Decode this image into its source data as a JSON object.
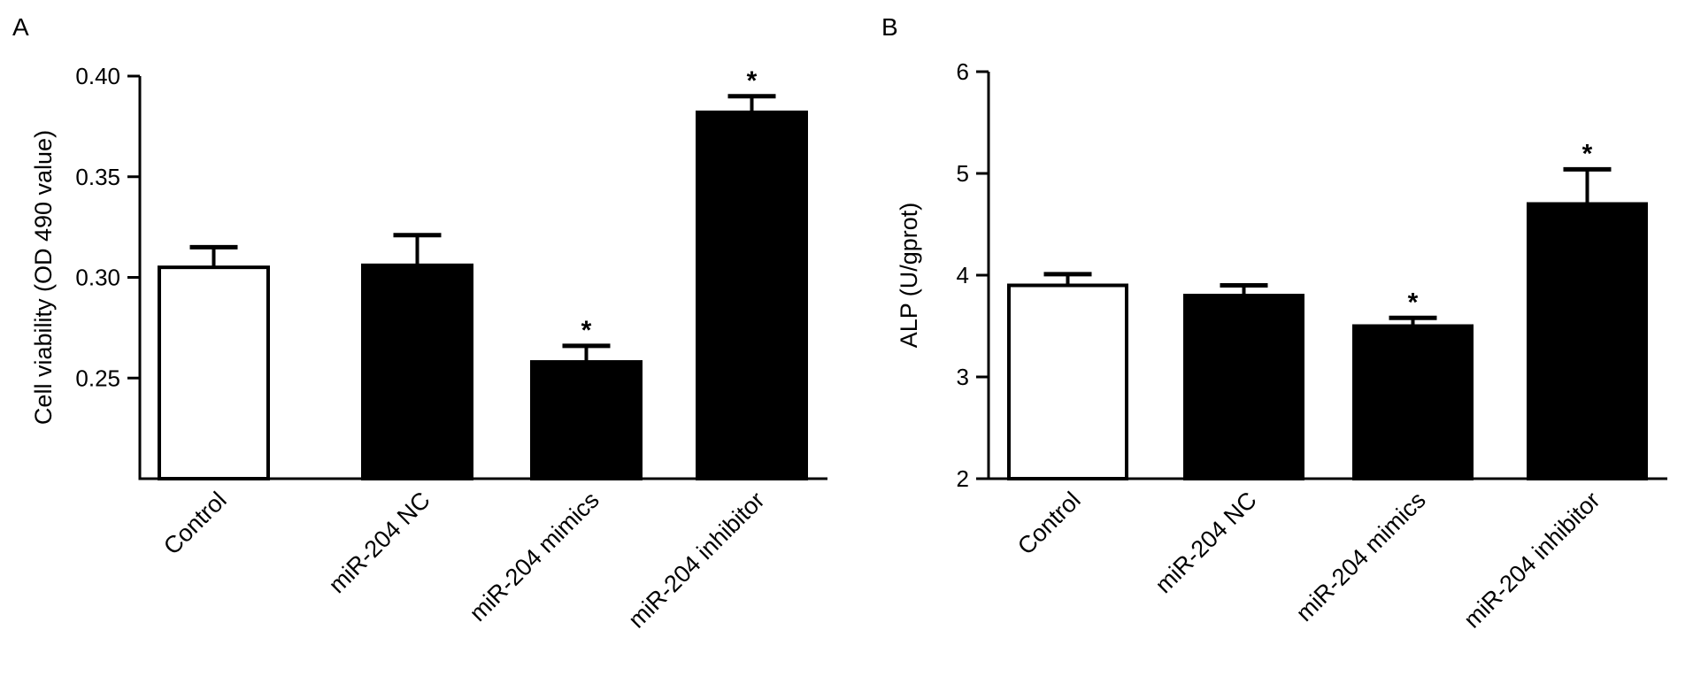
{
  "chart_data": [
    {
      "panel": "A",
      "type": "bar",
      "categories": [
        "Control",
        "miR-204 NC",
        "miR-204 mimics",
        "miR-204 inhibitor"
      ],
      "values": [
        0.305,
        0.306,
        0.258,
        0.382
      ],
      "errors": [
        0.01,
        0.015,
        0.008,
        0.008
      ],
      "significance": [
        "",
        "",
        "*",
        "*"
      ],
      "fills": [
        "#ffffff",
        "#000000",
        "#000000",
        "#000000"
      ],
      "ylabel": "Cell viability (OD 490 value)",
      "xlabel": "",
      "ylim": [
        0.2,
        0.4
      ],
      "yticks": [
        0.25,
        0.3,
        0.35,
        0.4
      ],
      "ytick_labels": [
        "0.25",
        "0.30",
        "0.35",
        "0.40"
      ],
      "grid": false
    },
    {
      "panel": "B",
      "type": "bar",
      "categories": [
        "Control",
        "miR-204 NC",
        "miR-204 mimics",
        "miR-204 inhibitor"
      ],
      "values": [
        3.9,
        3.8,
        3.5,
        4.7
      ],
      "errors": [
        0.11,
        0.1,
        0.08,
        0.34
      ],
      "significance": [
        "",
        "",
        "*",
        "*"
      ],
      "fills": [
        "#ffffff",
        "#000000",
        "#000000",
        "#000000"
      ],
      "ylabel": "ALP (U/gprot)",
      "xlabel": "",
      "ylim": [
        2,
        6
      ],
      "yticks": [
        2,
        3,
        4,
        5,
        6
      ],
      "ytick_labels": [
        "2",
        "3",
        "4",
        "5",
        "6"
      ],
      "grid": false
    }
  ]
}
